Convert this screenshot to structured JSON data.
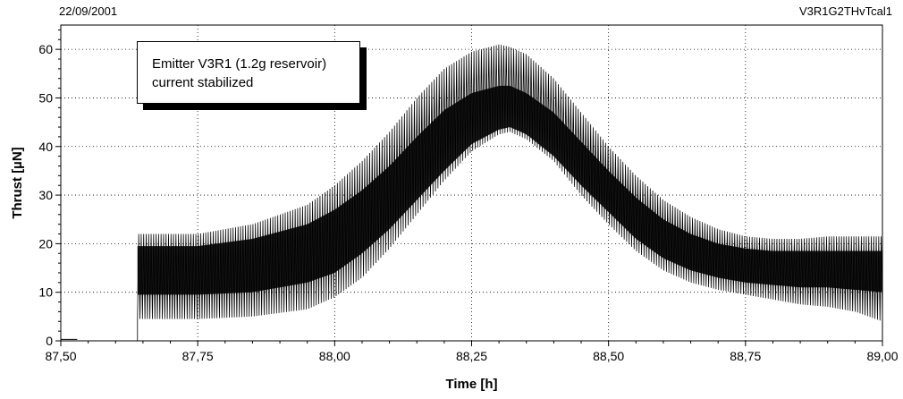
{
  "header": {
    "date": "22/09/2001",
    "file_id": "V3R1G2THvTcal1"
  },
  "annotation": {
    "line1": "Emitter V3R1 (1.2g reservoir)",
    "line2": "current stabilized"
  },
  "chart_data": {
    "type": "line",
    "title": "",
    "xlabel": "Time [h]",
    "ylabel": "Thrust [µN]",
    "xlim": [
      87.5,
      89.0
    ],
    "ylim": [
      0,
      65
    ],
    "x_ticks": [
      87.5,
      87.75,
      88.0,
      88.25,
      88.5,
      88.75,
      89.0
    ],
    "x_tick_labels": [
      "87,50",
      "87,75",
      "88,00",
      "88,25",
      "88,50",
      "88,75",
      "89,00"
    ],
    "y_ticks": [
      0,
      10,
      20,
      30,
      40,
      50,
      60
    ],
    "y_tick_labels": [
      "0",
      "10",
      "20",
      "30",
      "40",
      "50",
      "60"
    ],
    "grid": true,
    "line_color": "#000000",
    "series": [
      {
        "oscillation_upper": {
          "x": [
            87.64,
            87.75,
            87.85,
            87.95,
            88.0,
            88.05,
            88.1,
            88.15,
            88.2,
            88.25,
            88.3,
            88.32,
            88.35,
            88.4,
            88.45,
            88.5,
            88.55,
            88.6,
            88.65,
            88.7,
            88.75,
            88.8,
            88.85,
            88.9,
            88.95,
            89.0
          ],
          "y": [
            22,
            22,
            24,
            28,
            32,
            37,
            43,
            50,
            56,
            59.5,
            61,
            60.5,
            59,
            54,
            47,
            40,
            34,
            29,
            25.5,
            23,
            21.5,
            21,
            21,
            21.5,
            21.5,
            21.5
          ]
        },
        "oscillation_lower": {
          "x": [
            87.64,
            87.75,
            87.85,
            87.95,
            88.0,
            88.05,
            88.1,
            88.15,
            88.2,
            88.25,
            88.3,
            88.32,
            88.35,
            88.4,
            88.45,
            88.5,
            88.55,
            88.6,
            88.65,
            88.7,
            88.75,
            88.8,
            88.85,
            88.9,
            88.95,
            89.0
          ],
          "y": [
            4.5,
            4.5,
            5,
            6.5,
            9,
            13,
            19,
            26,
            33,
            39,
            42.5,
            43,
            41.5,
            37,
            30,
            24,
            18.5,
            14.5,
            12,
            10.5,
            9.5,
            8.5,
            7.5,
            7,
            6,
            4
          ]
        },
        "dense_band_upper": {
          "x": [
            87.64,
            87.75,
            87.85,
            87.95,
            88.0,
            88.05,
            88.1,
            88.15,
            88.2,
            88.25,
            88.3,
            88.32,
            88.35,
            88.4,
            88.45,
            88.5,
            88.55,
            88.6,
            88.65,
            88.7,
            88.75,
            88.8,
            88.85,
            88.9,
            88.95,
            89.0
          ],
          "y": [
            19.5,
            19.5,
            21,
            24,
            27,
            31,
            36,
            42,
            47.5,
            51,
            52.5,
            52.5,
            51,
            47,
            41,
            35,
            29.5,
            25,
            22,
            20,
            19,
            18.5,
            18.5,
            18.5,
            18.5,
            18.5
          ]
        },
        "dense_band_lower": {
          "x": [
            87.64,
            87.75,
            87.85,
            87.95,
            88.0,
            88.05,
            88.1,
            88.15,
            88.2,
            88.25,
            88.3,
            88.32,
            88.35,
            88.4,
            88.45,
            88.5,
            88.55,
            88.6,
            88.65,
            88.7,
            88.75,
            88.8,
            88.85,
            88.9,
            88.95,
            89.0
          ],
          "y": [
            9.5,
            9.5,
            10,
            12,
            14,
            18,
            23,
            29,
            35,
            40.5,
            43.5,
            44,
            42.5,
            38,
            32,
            26.5,
            21,
            17,
            14.5,
            13,
            12,
            11.5,
            11,
            11,
            10.5,
            10
          ]
        },
        "oscillation_cycles": 300,
        "baseline_before_start": {
          "x": [
            87.5,
            87.53
          ],
          "y": [
            0.3,
            0.3
          ]
        },
        "start_x": 87.64
      }
    ]
  }
}
